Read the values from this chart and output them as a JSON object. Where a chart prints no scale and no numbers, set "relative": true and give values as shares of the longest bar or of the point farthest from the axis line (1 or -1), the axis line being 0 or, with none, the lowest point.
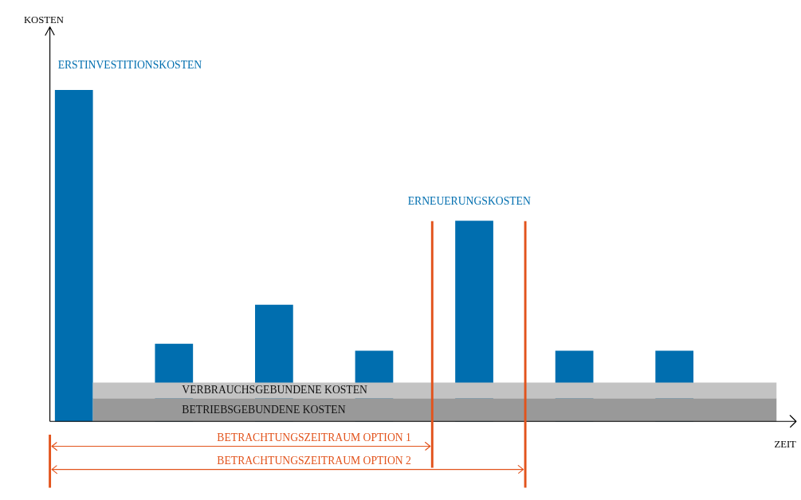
{
  "chart_data": {
    "type": "bar",
    "relative": true,
    "xlabel": "ZEIT",
    "categories": [
      null,
      null,
      null,
      null,
      null,
      null,
      null
    ],
    "series": [
      {
        "color": "#006eaf",
        "values": [
          1,
          0.234,
          0.352,
          0.213,
          0.605,
          0.213,
          0.213
        ]
      }
    ],
    "bands": [
      {
        "axis": "y",
        "from": 0,
        "to": 0.07,
        "label": "BETRIEBSGEBUNDENE KOSTEN",
        "color": "#999999"
      },
      {
        "axis": "y",
        "from": 0.07,
        "to": 0.117,
        "label": "VERBRAUCHSGEBUNDENE KOSTEN",
        "color": "#c3c3c3"
      }
    ],
    "annotations": [
      "KOSTEN",
      "ERSTINVESTITIONSKOSTEN",
      "ERNEUERUNGSKOSTEN"
    ],
    "ref_lines": [
      {
        "axis": "x",
        "label": "BETRACHTUNGSZEITRAUM OPTION 1",
        "color": "#e2531c"
      },
      {
        "axis": "x",
        "label": "BETRACHTUNGSZEITRAUM OPTION 2",
        "color": "#e2531c"
      }
    ]
  }
}
